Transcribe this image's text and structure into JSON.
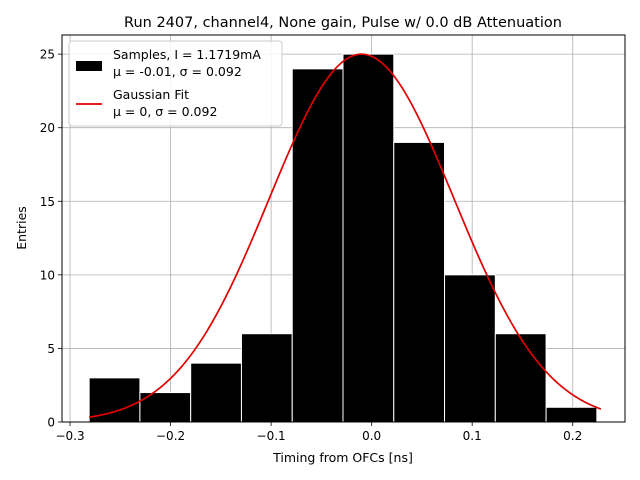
{
  "chart_data": {
    "type": "bar",
    "title": "Run 2407, channel4, None gain, Pulse w/ 0.0 dB Attenuation",
    "xlabel": "Timing from OFCs [ns]",
    "ylabel": "Entries",
    "xlim": [
      -0.308,
      0.252
    ],
    "ylim": [
      0,
      26.3
    ],
    "xticks": [
      -0.3,
      -0.2,
      -0.1,
      0.0,
      0.1,
      0.2
    ],
    "xtick_labels": [
      "−0.3",
      "−0.2",
      "−0.1",
      "0.0",
      "0.1",
      "0.2"
    ],
    "yticks": [
      0,
      5,
      10,
      15,
      20,
      25
    ],
    "ytick_labels": [
      "0",
      "5",
      "10",
      "15",
      "20",
      "25"
    ],
    "grid": true,
    "legend_position": "top-left",
    "histogram": {
      "bin_edges": [
        -0.281,
        -0.2305,
        -0.18,
        -0.1295,
        -0.079,
        -0.0285,
        0.022,
        0.0725,
        0.123,
        0.1735,
        0.224
      ],
      "counts": [
        3,
        2,
        4,
        6,
        24,
        25,
        19,
        10,
        6,
        1
      ],
      "color": "#000000",
      "edgecolor": "#ffffff"
    },
    "fit": {
      "type": "gaussian",
      "mu": -0.01,
      "sigma": 0.092,
      "amplitude": 25,
      "x_range": [
        -0.281,
        0.228
      ],
      "color": "#e00000"
    },
    "legend": {
      "samples_line1": "Samples, I = 1.1719mA",
      "samples_line2": "μ = -0.01, σ = 0.092",
      "fit_line1": "Gaussian Fit",
      "fit_line2": "μ = 0, σ = 0.092"
    }
  }
}
